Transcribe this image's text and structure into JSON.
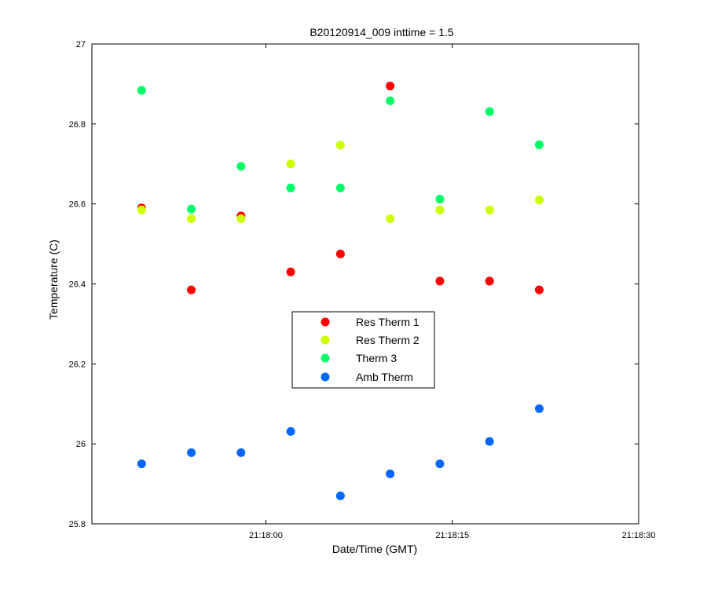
{
  "chart_data": {
    "type": "scatter",
    "title": "B20120914_009 inttime = 1.5",
    "xlabel": "Date/Time (GMT)",
    "ylabel": "Temperature (C)",
    "xlim": [
      "21:17:46",
      "21:18:30"
    ],
    "ylim": [
      25.8,
      27.0
    ],
    "x_ticks": [
      "21:18:00",
      "21:18:15",
      "21:18:30"
    ],
    "y_ticks": [
      "25.8",
      "26",
      "26.2",
      "26.4",
      "26.6",
      "26.8",
      "27"
    ],
    "x": [
      "21:17:50",
      "21:17:54",
      "21:17:58",
      "21:18:02",
      "21:18:06",
      "21:18:10",
      "21:18:14",
      "21:18:18",
      "21:18:22"
    ],
    "legend_position": "center",
    "grid": false,
    "series": [
      {
        "name": "Res Therm 1",
        "color": "#ff0000",
        "values": [
          26.59,
          26.385,
          26.57,
          26.43,
          26.475,
          26.895,
          26.407,
          26.407,
          26.385
        ]
      },
      {
        "name": "Res Therm 2",
        "color": "#ccff00",
        "values": [
          26.585,
          26.563,
          26.563,
          26.7,
          26.747,
          26.563,
          26.585,
          26.585,
          26.61
        ]
      },
      {
        "name": "Therm 3",
        "color": "#00ff66",
        "values": [
          26.884,
          26.587,
          26.694,
          26.64,
          26.64,
          26.858,
          26.612,
          26.831,
          26.748
        ]
      },
      {
        "name": "Amb Therm",
        "color": "#0066ff",
        "values": [
          25.95,
          25.978,
          25.978,
          26.031,
          25.87,
          25.925,
          25.95,
          26.006,
          26.088
        ]
      }
    ]
  }
}
